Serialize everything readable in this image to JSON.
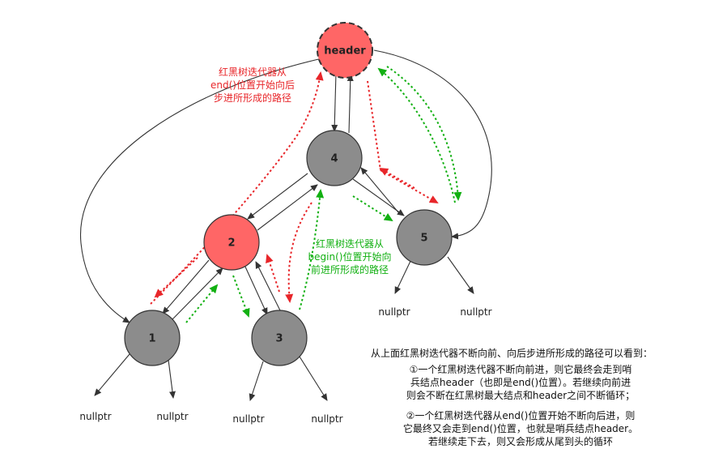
{
  "nodes": {
    "header": "header",
    "n4": "4",
    "n2": "2",
    "n5": "5",
    "n1": "1",
    "n3": "3"
  },
  "null_label": "nullptr",
  "red_note": [
    "红黑树迭代器从",
    "end()位置开始向后",
    "步进所形成的路径"
  ],
  "green_note": [
    "红黑树迭代器从",
    "begin()位置开始向",
    "前进所形成的路径"
  ],
  "summary": {
    "title": "从上面红黑树迭代器不断向前、向后步进所形成的路径可以看到：",
    "para1": [
      "①一个红黑树迭代器不断向前进，则它最终会走到哨",
      "兵结点header（也即是end()位置）。若继续向前进",
      "则会不断在红黑树最大结点和header之间不断循环；"
    ],
    "para2": [
      "②一个红黑树迭代器从end()位置开始不断向后进，则",
      "它最终又会走到end()位置，也就是哨兵结点header。",
      "若继续走下去，则又会形成从尾到头的循环"
    ]
  },
  "colors": {
    "red_node": "#ff6666",
    "gray_node": "#8c8c8c",
    "red_path": "#e8262a",
    "green_path": "#12b012",
    "edge": "#333333"
  }
}
